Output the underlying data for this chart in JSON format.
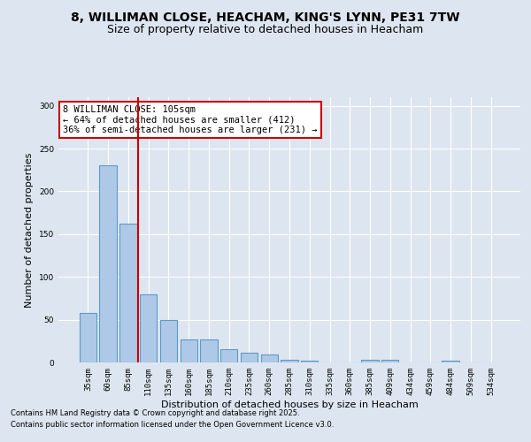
{
  "title": "8, WILLIMAN CLOSE, HEACHAM, KING'S LYNN, PE31 7TW",
  "subtitle": "Size of property relative to detached houses in Heacham",
  "xlabel": "Distribution of detached houses by size in Heacham",
  "ylabel": "Number of detached properties",
  "categories": [
    "35sqm",
    "60sqm",
    "85sqm",
    "110sqm",
    "135sqm",
    "160sqm",
    "185sqm",
    "210sqm",
    "235sqm",
    "260sqm",
    "285sqm",
    "310sqm",
    "335sqm",
    "360sqm",
    "385sqm",
    "409sqm",
    "434sqm",
    "459sqm",
    "484sqm",
    "509sqm",
    "534sqm"
  ],
  "values": [
    58,
    230,
    162,
    80,
    50,
    27,
    27,
    15,
    11,
    9,
    3,
    2,
    0,
    0,
    3,
    3,
    0,
    0,
    2,
    0,
    0
  ],
  "bar_color": "#aec9e8",
  "bar_edge_color": "#5a9ac8",
  "vline_x_index": 2.5,
  "vline_color": "#cc0000",
  "annotation_text": "8 WILLIMAN CLOSE: 105sqm\n← 64% of detached houses are smaller (412)\n36% of semi-detached houses are larger (231) →",
  "annotation_box_color": "#ffffff",
  "annotation_box_edge": "#cc0000",
  "ylim": [
    0,
    310
  ],
  "yticks": [
    0,
    50,
    100,
    150,
    200,
    250,
    300
  ],
  "bg_color": "#dde6f0",
  "footer1": "Contains HM Land Registry data © Crown copyright and database right 2025.",
  "footer2": "Contains public sector information licensed under the Open Government Licence v3.0.",
  "title_fontsize": 10,
  "subtitle_fontsize": 9,
  "axis_label_fontsize": 8,
  "tick_fontsize": 6.5,
  "annotation_fontsize": 7.5
}
